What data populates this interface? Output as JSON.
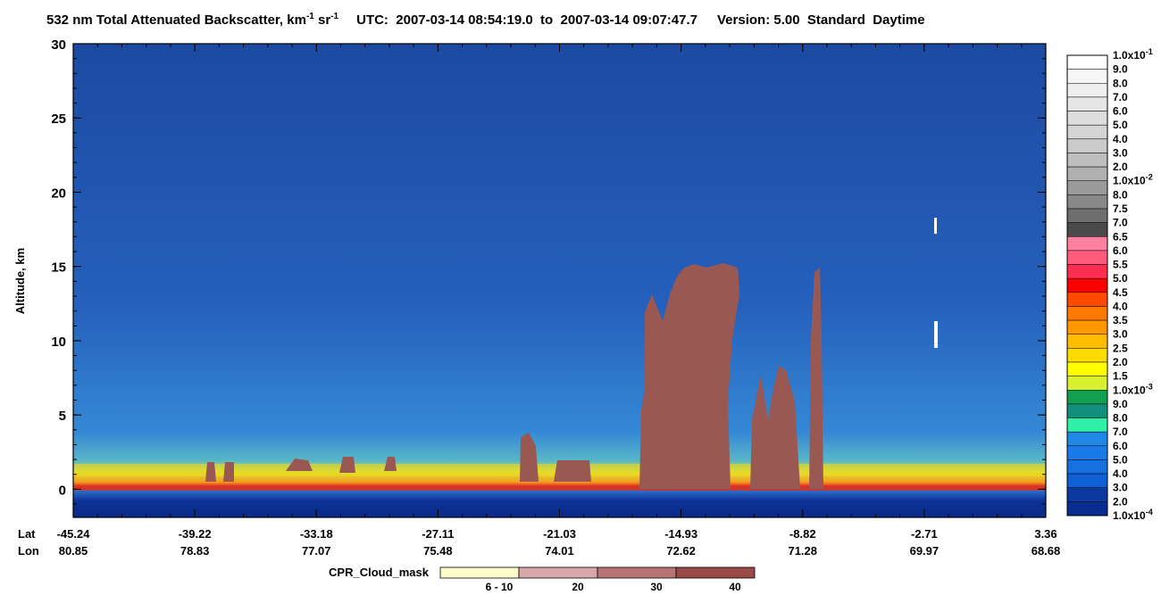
{
  "chart_data": {
    "type": "curtain",
    "title": {
      "main": "532 nm Total Attenuated Backscatter, km",
      "exp1": "-1",
      "mid": " sr",
      "exp2": "-1",
      "utc": "UTC:  2007-03-14 08:54:19.0  to  2007-03-14 09:07:47.7",
      "version": "Version: 5.00  Standard  Daytime"
    },
    "y_label": "Altitude, km",
    "ylim": [
      -1.9,
      30
    ],
    "yticks": [
      0,
      5,
      10,
      15,
      20,
      25,
      30
    ],
    "lat_title": "Lat",
    "lon_title": "Lon",
    "lat": [
      -45.24,
      -39.22,
      -33.18,
      -27.11,
      -21.03,
      -14.93,
      -8.82,
      -2.71,
      3.36
    ],
    "lon": [
      80.85,
      78.83,
      77.07,
      75.48,
      74.01,
      72.62,
      71.28,
      69.97,
      68.68
    ],
    "colorbar": {
      "labels": [
        {
          "label": "1.0x10",
          "exp": "-1"
        },
        "9.0",
        "8.0",
        "7.0",
        "6.0",
        "5.0",
        "4.0",
        "3.0",
        "2.0",
        {
          "label": "1.0x10",
          "exp": "-2"
        },
        "8.0",
        "7.5",
        "7.0",
        "6.5",
        "6.0",
        "5.5",
        "5.0",
        "4.5",
        "4.0",
        "3.5",
        "3.0",
        "2.5",
        "2.0",
        "1.5",
        {
          "label": "1.0x10",
          "exp": "-3"
        },
        "9.0",
        "8.0",
        "7.0",
        "6.0",
        "5.0",
        "4.0",
        "3.0",
        "2.0",
        {
          "label": "1.0x10",
          "exp": "-4"
        }
      ],
      "colors": [
        "#ffffff",
        "#f6f6f6",
        "#eeeeee",
        "#e6e6e6",
        "#dddddd",
        "#d4d4d4",
        "#cacaca",
        "#bebebe",
        "#b0b0b0",
        "#9a9a9a",
        "#888888",
        "#6e6e6e",
        "#4a4a4a",
        "#ff80a0",
        "#ff5c7c",
        "#ff2e50",
        "#ff0000",
        "#ff4a00",
        "#ff7800",
        "#ff9800",
        "#ffbc00",
        "#ffdc00",
        "#ffff00",
        "#d8f030",
        "#10a050",
        "#10907c",
        "#30f0a8",
        "#2088e6",
        "#1a7ae8",
        "#1670e0",
        "#0e60d4",
        "#0a3aa0",
        "#082c90"
      ]
    },
    "cpr": {
      "title": "CPR_Cloud_mask",
      "labels": [
        "6 - 10",
        "20",
        "30",
        "40"
      ],
      "colors": [
        "#fffccc",
        "#d8a8a8",
        "#b87474",
        "#9a4a48"
      ]
    }
  }
}
